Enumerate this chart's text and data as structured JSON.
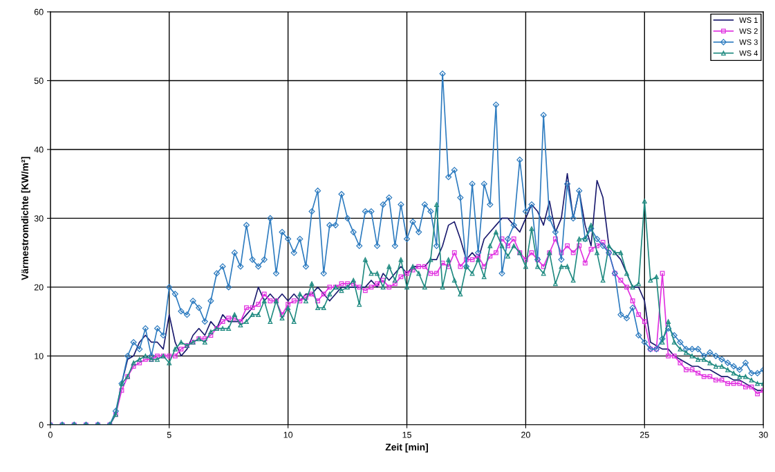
{
  "chart_data": {
    "type": "line",
    "xlabel": "Zeit [min]",
    "ylabel": "Värmestromdichte [KW/m²]",
    "xlim": [
      0,
      30
    ],
    "xticks": [
      0,
      5,
      10,
      15,
      20,
      25,
      30
    ],
    "ylim": [
      0,
      60
    ],
    "yticks": [
      0,
      10,
      20,
      30,
      40,
      50,
      60
    ],
    "grid": true,
    "legend": "top right",
    "line_style": "solid",
    "x": [
      0,
      0.5,
      1,
      1.5,
      2,
      2.5,
      2.75,
      3,
      3.25,
      3.5,
      3.75,
      4,
      4.25,
      4.5,
      4.75,
      5,
      5.25,
      5.5,
      5.75,
      6,
      6.25,
      6.5,
      6.75,
      7,
      7.25,
      7.5,
      7.75,
      8,
      8.25,
      8.5,
      8.75,
      9,
      9.25,
      9.5,
      9.75,
      10,
      10.25,
      10.5,
      10.75,
      11,
      11.25,
      11.5,
      11.75,
      12,
      12.25,
      12.5,
      12.75,
      13,
      13.25,
      13.5,
      13.75,
      14,
      14.25,
      14.5,
      14.75,
      15,
      15.25,
      15.5,
      15.75,
      16,
      16.25,
      16.5,
      16.75,
      17,
      17.25,
      17.5,
      17.75,
      18,
      18.25,
      18.5,
      18.75,
      19,
      19.25,
      19.5,
      19.75,
      20,
      20.25,
      20.5,
      20.75,
      21,
      21.25,
      21.5,
      21.75,
      22,
      22.25,
      22.5,
      22.75,
      23,
      23.25,
      23.5,
      23.75,
      24,
      24.25,
      24.5,
      24.75,
      25,
      25.25,
      25.5,
      25.75,
      26,
      26.25,
      26.5,
      26.75,
      27,
      27.25,
      27.5,
      27.75,
      28,
      28.25,
      28.5,
      28.75,
      29,
      29.25,
      29.5,
      29.75,
      30
    ],
    "series": [
      {
        "name": "WS 1",
        "color": "#1a1a6e",
        "marker": "none",
        "values": [
          0,
          0,
          0,
          0,
          0,
          0,
          1.5,
          6,
          9.5,
          10,
          12,
          13,
          12,
          12,
          11,
          16,
          12,
          10,
          11,
          13,
          14,
          13,
          15,
          14,
          16,
          15,
          15,
          15,
          16,
          17,
          20,
          18,
          19,
          18,
          19,
          18,
          19,
          18,
          19,
          19,
          20,
          19,
          18,
          19,
          20,
          20,
          20,
          20,
          20,
          21,
          20,
          22,
          21,
          22,
          23,
          22,
          23,
          23,
          23,
          24,
          24,
          26,
          29,
          29.5,
          27,
          24,
          25,
          24,
          27,
          28,
          29,
          30,
          30,
          29,
          28,
          30,
          32,
          31,
          29,
          32.5,
          28,
          30,
          36.5,
          30,
          34,
          29,
          26,
          35.5,
          33,
          26,
          25,
          24,
          22,
          20,
          20,
          18,
          12,
          11.5,
          11,
          11,
          10,
          9.5,
          9,
          8.5,
          8.5,
          8,
          8,
          7.5,
          7,
          7,
          6.5,
          6.5,
          6,
          5.5,
          5,
          5
        ]
      },
      {
        "name": "WS 2",
        "color": "#e030e0",
        "marker": "square",
        "values": [
          0,
          0,
          0,
          0,
          0,
          0,
          1.5,
          5,
          7,
          8.5,
          9,
          9.5,
          9.5,
          10,
          10,
          10,
          10,
          11,
          11.5,
          12,
          12.5,
          12.5,
          13,
          14,
          15,
          15.5,
          15.5,
          15,
          17,
          17,
          17.5,
          19,
          18,
          18,
          16,
          17.5,
          18,
          18,
          18.5,
          19,
          18,
          19,
          20,
          20,
          20.5,
          20.5,
          20.5,
          20,
          19.5,
          20,
          20.5,
          21,
          20,
          20.5,
          21.5,
          22,
          22.5,
          23,
          23,
          22,
          22,
          23.5,
          23,
          25,
          23,
          24,
          24,
          24.5,
          23,
          24.5,
          25,
          27,
          26,
          27,
          25,
          24,
          25,
          24,
          23,
          25,
          27,
          25,
          26,
          25,
          26,
          23.5,
          25.5,
          26,
          26.5,
          25,
          22,
          21,
          20,
          18,
          16,
          15,
          11,
          11,
          22,
          10,
          10,
          9,
          8,
          8,
          7.5,
          7,
          7,
          6.5,
          6.5,
          6,
          6,
          6,
          5.5,
          5.5,
          4.5,
          5
        ]
      },
      {
        "name": "WS 3",
        "color": "#2e7cc0",
        "marker": "diamond",
        "values": [
          0,
          0,
          0,
          0,
          0,
          0,
          2,
          6,
          10,
          12,
          11,
          14,
          10,
          14,
          13,
          20,
          19,
          16.5,
          16,
          18,
          17,
          15,
          18,
          22,
          23,
          20,
          25,
          23,
          29,
          24,
          23,
          24,
          30,
          22,
          28,
          27,
          25,
          27,
          23,
          31,
          34,
          22,
          29,
          29,
          33.5,
          30,
          28,
          26,
          31,
          31,
          26,
          32,
          33,
          26,
          32,
          27,
          29.5,
          28,
          32,
          31,
          26,
          51,
          36,
          37,
          33,
          23,
          35,
          25,
          35,
          32,
          46.5,
          22,
          27,
          29,
          38.5,
          31,
          32,
          24,
          45,
          30,
          28,
          24,
          35,
          30,
          34,
          27,
          28.5,
          27,
          26,
          25,
          22,
          16,
          15.5,
          17,
          13,
          12,
          11,
          11,
          12.5,
          14,
          13,
          12,
          11,
          11,
          11,
          10,
          10.5,
          10,
          9.5,
          9,
          8.5,
          8,
          9,
          7.5,
          7.5,
          8
        ]
      },
      {
        "name": "WS 4",
        "color": "#1f8a80",
        "marker": "triangle",
        "values": [
          0,
          0,
          0,
          0,
          0,
          0,
          1.5,
          6,
          7,
          9,
          9.5,
          10,
          9.5,
          9.5,
          10,
          9,
          11,
          12,
          11.5,
          12,
          12.5,
          12,
          13.5,
          14,
          14,
          14,
          16,
          14.5,
          15,
          16,
          16,
          18,
          15,
          18,
          15.5,
          17,
          15,
          19,
          18,
          20.5,
          17,
          17,
          19,
          20,
          19.5,
          20,
          21,
          17.5,
          24,
          22,
          22,
          20,
          23,
          21,
          24,
          20,
          23,
          22,
          20,
          24,
          32,
          20,
          24,
          21,
          19,
          23,
          22,
          24,
          21.5,
          26,
          28,
          26,
          24.5,
          26,
          25,
          23,
          28.5,
          23,
          22,
          25,
          20.5,
          23,
          23,
          21,
          27,
          27,
          29,
          25,
          21,
          26,
          25,
          25,
          22,
          20,
          20.5,
          32.5,
          21,
          21.5,
          12,
          15,
          12,
          11,
          10.5,
          10,
          9.5,
          9.5,
          9,
          8.5,
          8.5,
          8,
          7.5,
          7,
          7,
          6.5,
          6,
          6
        ]
      }
    ]
  }
}
